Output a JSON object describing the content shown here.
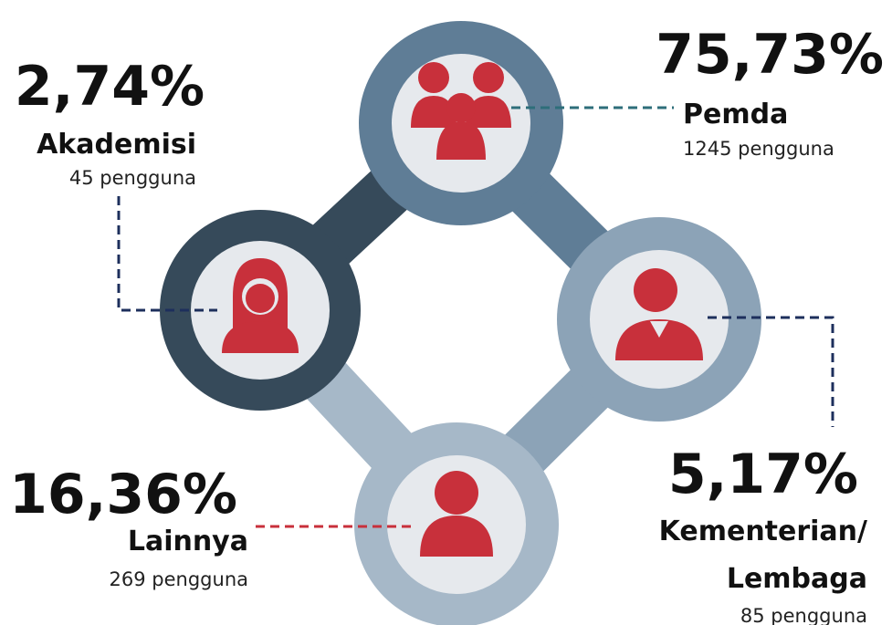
{
  "segments": [
    {
      "percent": "75,73%",
      "label": [
        "Pemda"
      ],
      "count": "1245 pengguna"
    },
    {
      "percent": "2,74%",
      "label": [
        "Akademisi"
      ],
      "count": "45 pengguna"
    },
    {
      "percent": "5,17%",
      "label": [
        "Kementerian/",
        "Lembaga"
      ],
      "count": "85 pengguna"
    },
    {
      "percent": "16,36%",
      "label": [
        "Lainnya"
      ],
      "count": "269 pengguna"
    }
  ]
}
